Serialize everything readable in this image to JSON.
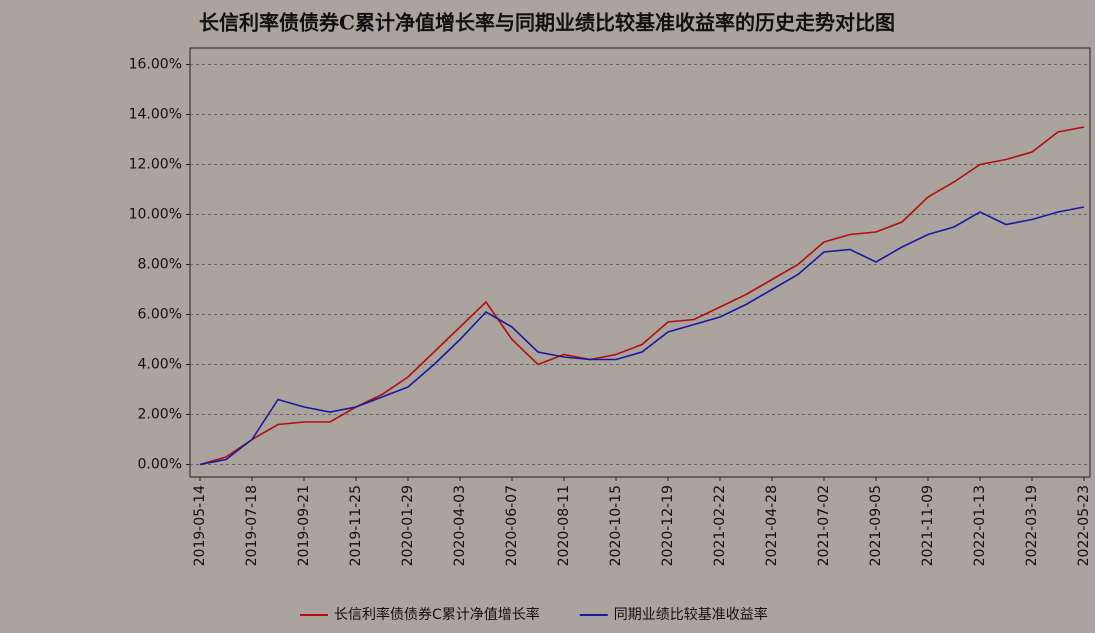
{
  "chart_data": {
    "type": "line",
    "title": "长信利率债债券C累计净值增长率与同期业绩比较基准收益率的历史走势对比图",
    "categories": [
      "2019-05-14",
      null,
      "2019-07-18",
      null,
      "2019-09-21",
      null,
      "2019-11-25",
      null,
      "2020-01-29",
      null,
      "2020-04-03",
      null,
      "2020-06-07",
      null,
      "2020-08-11",
      null,
      "2020-10-15",
      null,
      "2020-12-19",
      null,
      "2021-02-22",
      null,
      "2021-04-28",
      null,
      "2021-07-02",
      null,
      "2021-09-05",
      null,
      "2021-11-09",
      null,
      "2022-01-13",
      null,
      "2022-03-19",
      null,
      "2022-05-23"
    ],
    "series": [
      {
        "name": "长信利率债债券C累计净值增长率",
        "color": "#b01010",
        "values": [
          0.0,
          0.3,
          1.0,
          1.6,
          1.7,
          1.7,
          2.3,
          2.8,
          3.5,
          4.5,
          5.5,
          6.5,
          5.0,
          4.0,
          4.4,
          4.2,
          4.4,
          4.8,
          5.7,
          5.8,
          6.3,
          6.8,
          7.4,
          8.0,
          8.9,
          9.2,
          9.3,
          9.7,
          10.7,
          11.3,
          12.0,
          12.2,
          12.5,
          13.3,
          13.5
        ]
      },
      {
        "name": "同期业绩比较基准收益率",
        "color": "#1a1aa0",
        "values": [
          0.0,
          0.2,
          1.0,
          2.6,
          2.3,
          2.1,
          2.3,
          2.7,
          3.1,
          4.0,
          5.0,
          6.1,
          5.5,
          4.5,
          4.3,
          4.2,
          4.2,
          4.5,
          5.3,
          5.6,
          5.9,
          6.4,
          7.0,
          7.6,
          8.5,
          8.6,
          8.1,
          8.7,
          9.2,
          9.5,
          10.1,
          9.6,
          9.8,
          10.1,
          10.3
        ]
      }
    ],
    "ylim": [
      -0.5,
      16.5
    ],
    "yticks": [
      {
        "value": 0,
        "label": "0.00%"
      },
      {
        "value": 2,
        "label": "2.00%"
      },
      {
        "value": 4,
        "label": "4.00%"
      },
      {
        "value": 6,
        "label": "6.00%"
      },
      {
        "value": 8,
        "label": "8.00%"
      },
      {
        "value": 10,
        "label": "10.00%"
      },
      {
        "value": 12,
        "label": "12.00%"
      },
      {
        "value": 14,
        "label": "14.00%"
      },
      {
        "value": 16,
        "label": "16.00%"
      }
    ],
    "grid": true
  }
}
